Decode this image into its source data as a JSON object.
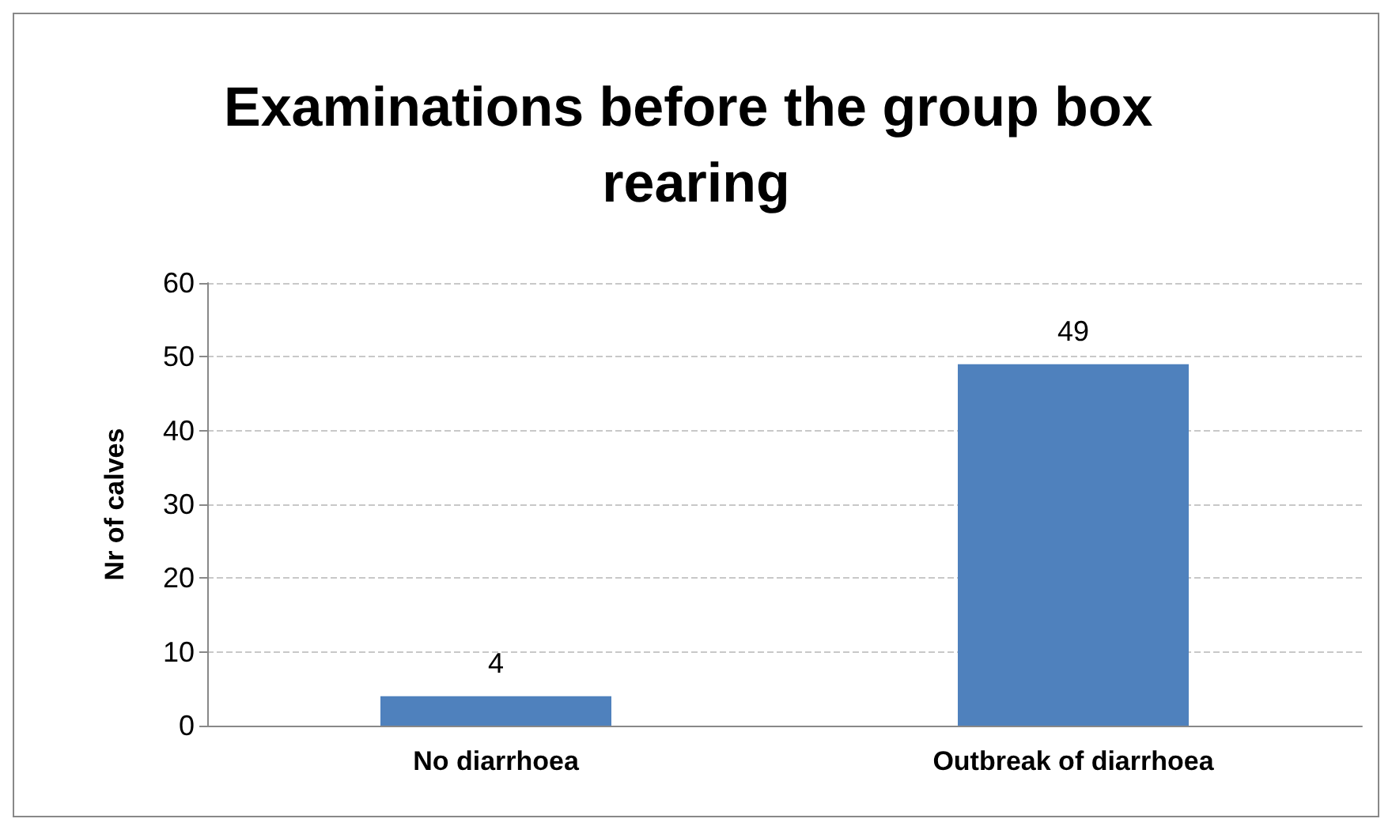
{
  "chart_data": {
    "type": "bar",
    "title": "Examinations before the group box rearing",
    "ylabel": "Nr of calves",
    "categories": [
      "No diarrhoea",
      "Outbreak of diarrhoea"
    ],
    "values": [
      4,
      49
    ],
    "color": "#4f81bd",
    "ylim": [
      0,
      60
    ],
    "yticks": [
      0,
      10,
      20,
      30,
      40,
      50,
      60
    ],
    "grid": "y",
    "data_labels": true
  }
}
